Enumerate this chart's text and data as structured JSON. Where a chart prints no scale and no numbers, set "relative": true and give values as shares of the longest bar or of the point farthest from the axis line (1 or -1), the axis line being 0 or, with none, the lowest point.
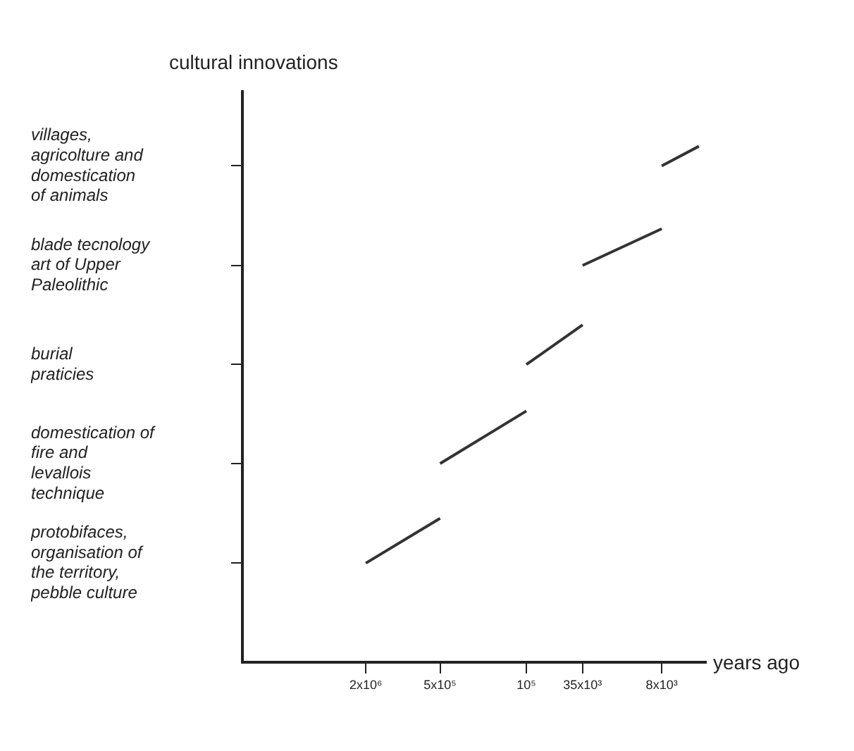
{
  "chart_data": {
    "type": "line",
    "xlabel": "years ago",
    "ylabel": "cultural innovations",
    "log": "x",
    "legend": false,
    "grid": false,
    "marker": "none",
    "line_style": "solid",
    "relative": true,
    "xlim": [
      20000000,
      3500
    ],
    "xticks": [
      {
        "value": 2000000,
        "label": "2x10⁶"
      },
      {
        "value": 500000,
        "label": "5x10⁵"
      },
      {
        "value": 100000,
        "label": "10⁵"
      },
      {
        "value": 35000,
        "label": "35x10³"
      },
      {
        "value": 8000,
        "label": "8x10³"
      }
    ],
    "annotations": [
      "protobifaces,\norganisation of\nthe territory,\npebble culture",
      "domestication of\nfire and\nlevallois\ntechnique",
      "burial\npraticies",
      "blade tecnology\nart of Upper\nPaleolithic",
      "villages,\nagricolture and\ndomestication\nof animals"
    ],
    "series": [
      {
        "color": "#333333",
        "x": [
          2000000,
          500000
        ],
        "values": [
          0.192,
          0.279
        ]
      },
      {
        "color": "#333333",
        "x": [
          500000,
          100000
        ],
        "values": [
          0.385,
          0.487
        ]
      },
      {
        "color": "#333333",
        "x": [
          100000,
          35000
        ],
        "values": [
          0.577,
          0.654
        ]
      },
      {
        "color": "#333333",
        "x": [
          35000,
          8000
        ],
        "values": [
          0.769,
          0.84
        ]
      },
      {
        "color": "#333333",
        "x": [
          8000,
          4000
        ],
        "values": [
          0.962,
          1
        ]
      }
    ]
  }
}
